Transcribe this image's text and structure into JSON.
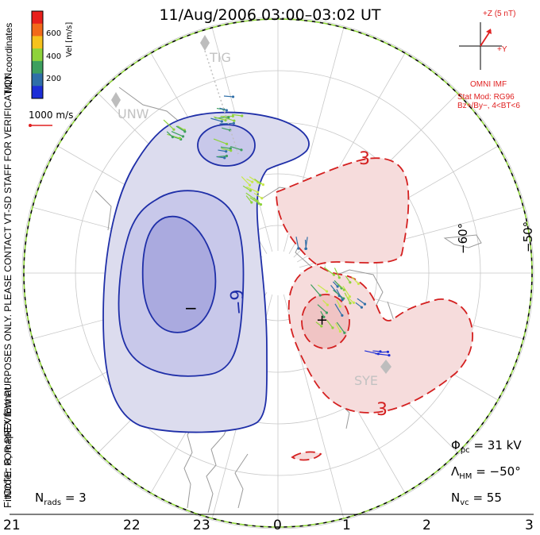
{
  "title": "11/Aug/2006 03:00–03:02 UT",
  "colorbar": {
    "label": "Vel [m/s]",
    "ticks": [
      "600",
      "400",
      "200"
    ],
    "colors": [
      "#e8201c",
      "#f26a1a",
      "#f6c21d",
      "#8ed33b",
      "#3d9f5f",
      "#2f6fa8",
      "#1d2ed6"
    ]
  },
  "side_note": {
    "mlt_coordinates": "MLT coordinates",
    "line1": "NOTE: FOR PREVIEW PURPOSES ONLY. PLEASE CONTACT VT-SD STAFF FOR VERIFICATION.",
    "line2": "FitOrder: 8, mapEX format"
  },
  "reference_vector": "1000 m/s",
  "imf": {
    "z_label": "+Z (5 nT)",
    "y_label": "+Y",
    "source": "OMNI IMF",
    "model": "Stat Mod: RG96",
    "condition": "Bz+/By−, 4<BT<6"
  },
  "stations": [
    {
      "name": "TIG"
    },
    {
      "name": "UNW"
    },
    {
      "name": "SYE"
    }
  ],
  "latitude_labels": [
    "−60°",
    "−50°"
  ],
  "contours": {
    "negative_cell_label": "−9",
    "positive_cell_label_top": "3",
    "positive_cell_label_bottom": "3",
    "min_marker": "−",
    "max_marker": "+"
  },
  "stats": {
    "phi_pc": {
      "symbol": "Φ",
      "sub": "pc",
      "value": "= 31 kV"
    },
    "lambda_hm": {
      "symbol": "Λ",
      "sub": "HM",
      "value": "= −50°"
    },
    "n_vc": {
      "symbol": "N",
      "sub": "vc",
      "value": "= 55"
    },
    "n_rads": {
      "symbol": "N",
      "sub": "rads",
      "value": "= 3"
    }
  },
  "mlt_ticks": [
    "21",
    "22",
    "23",
    "0",
    "1",
    "2",
    "3"
  ],
  "colors": {
    "negative_fill": "#dcdcee",
    "negative_deep": "#aaaadf",
    "negative_mid": "#c8c8ea",
    "negative_line": "#1f2fa8",
    "positive_fill": "#f6dcdc",
    "positive_deep": "#f0c4c4",
    "positive_line": "#d42020",
    "boundary": "#8ed33b"
  }
}
